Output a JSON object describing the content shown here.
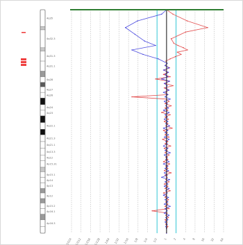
{
  "chart_data": {
    "type": "line",
    "orientation": "vertical-profile",
    "xscale": "log2",
    "x_ticks": [
      "1/1024",
      "1/512",
      "1/256",
      "1/128",
      "1/64",
      "1/32",
      "1/16",
      "1/8",
      "1/4",
      "1/2",
      "1",
      "2",
      "4",
      "8",
      "16",
      "32",
      "64"
    ],
    "x_axis_label": "",
    "grid": true,
    "highlight_lines": [
      0.5,
      2
    ],
    "center_line": 1,
    "colors": {
      "series_1": "#e03c3c",
      "series_2": "#3a3adc",
      "highlight": "#33c7d6",
      "center": "#222222",
      "top_border": "#2e7d32",
      "legend_red": "#ef4040"
    },
    "ideogram": {
      "bands": [
        {
          "label": "4q35",
          "start": 0.0,
          "end": 0.075,
          "stain": "gneg"
        },
        {
          "label": "",
          "start": 0.075,
          "end": 0.09,
          "stain": "gpos25"
        },
        {
          "label": "4q32.3",
          "start": 0.09,
          "end": 0.17,
          "stain": "gneg"
        },
        {
          "label": "",
          "start": 0.17,
          "end": 0.185,
          "stain": "gpos25"
        },
        {
          "label": "4q31.3",
          "start": 0.185,
          "end": 0.23,
          "stain": "gneg"
        },
        {
          "label": "4q31.1",
          "start": 0.23,
          "end": 0.275,
          "stain": "gneg"
        },
        {
          "label": "",
          "start": 0.275,
          "end": 0.3,
          "stain": "gpos50"
        },
        {
          "label": "4q28",
          "start": 0.3,
          "end": 0.325,
          "stain": "gneg"
        },
        {
          "label": "",
          "start": 0.325,
          "end": 0.345,
          "stain": "gpos75"
        },
        {
          "label": "4q27",
          "start": 0.345,
          "end": 0.37,
          "stain": "gneg"
        },
        {
          "label": "4q26",
          "start": 0.37,
          "end": 0.395,
          "stain": "gneg"
        },
        {
          "label": "",
          "start": 0.395,
          "end": 0.425,
          "stain": "gpos100"
        },
        {
          "label": "4q24",
          "start": 0.425,
          "end": 0.45,
          "stain": "gneg"
        },
        {
          "label": "4q23",
          "start": 0.45,
          "end": 0.475,
          "stain": "gneg"
        },
        {
          "label": "",
          "start": 0.475,
          "end": 0.505,
          "stain": "gpos100"
        },
        {
          "label": "4q22.1",
          "start": 0.505,
          "end": 0.535,
          "stain": "gneg"
        },
        {
          "label": "",
          "start": 0.535,
          "end": 0.56,
          "stain": "gpos100"
        },
        {
          "label": "4q21.3",
          "start": 0.56,
          "end": 0.59,
          "stain": "gneg"
        },
        {
          "label": "4q21.1",
          "start": 0.59,
          "end": 0.62,
          "stain": "gneg"
        },
        {
          "label": "4q13.3",
          "start": 0.62,
          "end": 0.65,
          "stain": "gneg"
        },
        {
          "label": "4q12",
          "start": 0.65,
          "end": 0.675,
          "stain": "gneg"
        },
        {
          "label": "4p15.31",
          "start": 0.675,
          "end": 0.705,
          "stain": "gneg"
        },
        {
          "label": "",
          "start": 0.705,
          "end": 0.725,
          "stain": "gpos25"
        },
        {
          "label": "4p15.1",
          "start": 0.725,
          "end": 0.75,
          "stain": "gneg"
        },
        {
          "label": "4p14",
          "start": 0.75,
          "end": 0.775,
          "stain": "gneg"
        },
        {
          "label": "4p13",
          "start": 0.775,
          "end": 0.8,
          "stain": "gneg"
        },
        {
          "label": "",
          "start": 0.8,
          "end": 0.82,
          "stain": "gpos50"
        },
        {
          "label": "4p12",
          "start": 0.82,
          "end": 0.845,
          "stain": "gneg"
        },
        {
          "label": "",
          "start": 0.845,
          "end": 0.865,
          "stain": "gpos50"
        },
        {
          "label": "4p15.2",
          "start": 0.865,
          "end": 0.89,
          "stain": "gneg"
        },
        {
          "label": "4p16.1",
          "start": 0.89,
          "end": 0.915,
          "stain": "gneg"
        },
        {
          "label": "",
          "start": 0.915,
          "end": 0.94,
          "stain": "gpos50"
        },
        {
          "label": "4p16.3",
          "start": 0.94,
          "end": 0.97,
          "stain": "gneg"
        },
        {
          "label": "",
          "start": 0.97,
          "end": 1.0,
          "stain": "gneg"
        }
      ]
    },
    "series": [
      {
        "points": [
          [
            0.0,
            1.0
          ],
          [
            0.02,
            1.6
          ],
          [
            0.05,
            4.5
          ],
          [
            0.08,
            20
          ],
          [
            0.1,
            4
          ],
          [
            0.13,
            1.4
          ],
          [
            0.15,
            1.7
          ],
          [
            0.16,
            2.3
          ],
          [
            0.17,
            3.4
          ],
          [
            0.18,
            4.6
          ],
          [
            0.19,
            2.2
          ],
          [
            0.2,
            2.9
          ],
          [
            0.21,
            1.9
          ],
          [
            0.22,
            1.3
          ],
          [
            0.23,
            0.95
          ],
          [
            0.24,
            1.05
          ],
          [
            0.25,
            0.9
          ],
          [
            0.26,
            1.25
          ],
          [
            0.27,
            0.85
          ],
          [
            0.28,
            1.1
          ],
          [
            0.29,
            0.8
          ],
          [
            0.3,
            1.3
          ],
          [
            0.31,
            0.45
          ],
          [
            0.32,
            1.2
          ],
          [
            0.33,
            0.9
          ],
          [
            0.34,
            1.6
          ],
          [
            0.35,
            0.85
          ],
          [
            0.36,
            1.15
          ],
          [
            0.37,
            0.95
          ],
          [
            0.38,
            1.1
          ],
          [
            0.39,
            0.08
          ],
          [
            0.4,
            1.0
          ],
          [
            0.41,
            1.2
          ],
          [
            0.42,
            0.9
          ],
          [
            0.43,
            1.4
          ],
          [
            0.44,
            0.9
          ],
          [
            0.45,
            1.1
          ],
          [
            0.46,
            0.7
          ],
          [
            0.47,
            1.3
          ],
          [
            0.48,
            0.9
          ],
          [
            0.49,
            1.15
          ],
          [
            0.5,
            0.85
          ],
          [
            0.51,
            1.1
          ],
          [
            0.52,
            0.95
          ],
          [
            0.53,
            1.5
          ],
          [
            0.54,
            0.8
          ],
          [
            0.55,
            1.05
          ],
          [
            0.56,
            0.9
          ],
          [
            0.57,
            1.2
          ],
          [
            0.58,
            0.75
          ],
          [
            0.59,
            1.1
          ],
          [
            0.6,
            0.9
          ],
          [
            0.61,
            1.35
          ],
          [
            0.62,
            0.85
          ],
          [
            0.63,
            1.05
          ],
          [
            0.64,
            0.9
          ],
          [
            0.65,
            1.2
          ],
          [
            0.66,
            0.95
          ],
          [
            0.67,
            1.1
          ],
          [
            0.68,
            0.8
          ],
          [
            0.69,
            1.25
          ],
          [
            0.7,
            0.95
          ],
          [
            0.71,
            1.1
          ],
          [
            0.72,
            0.85
          ],
          [
            0.73,
            1.4
          ],
          [
            0.74,
            0.9
          ],
          [
            0.75,
            1.05
          ],
          [
            0.76,
            0.95
          ],
          [
            0.77,
            1.2
          ],
          [
            0.78,
            0.85
          ],
          [
            0.79,
            1.1
          ],
          [
            0.8,
            0.9
          ],
          [
            0.81,
            1.3
          ],
          [
            0.82,
            0.8
          ],
          [
            0.83,
            1.0
          ],
          [
            0.84,
            0.9
          ],
          [
            0.85,
            1.15
          ],
          [
            0.86,
            0.95
          ],
          [
            0.87,
            1.1
          ],
          [
            0.88,
            0.9
          ],
          [
            0.89,
            1.2
          ],
          [
            0.9,
            0.35
          ],
          [
            0.91,
            1.05
          ],
          [
            0.92,
            0.95
          ],
          [
            0.93,
            1.15
          ],
          [
            0.94,
            0.9
          ],
          [
            0.95,
            1.05
          ],
          [
            0.96,
            0.95
          ],
          [
            0.97,
            1.1
          ],
          [
            0.98,
            1.0
          ],
          [
            1.0,
            1.0
          ]
        ]
      },
      {
        "points": [
          [
            0.0,
            1.0
          ],
          [
            0.02,
            0.7
          ],
          [
            0.05,
            0.12
          ],
          [
            0.08,
            0.05
          ],
          [
            0.11,
            0.1
          ],
          [
            0.14,
            0.2
          ],
          [
            0.16,
            0.45
          ],
          [
            0.18,
            0.08
          ],
          [
            0.2,
            0.18
          ],
          [
            0.22,
            0.55
          ],
          [
            0.24,
            1.05
          ],
          [
            0.25,
            0.9
          ],
          [
            0.26,
            1.2
          ],
          [
            0.27,
            0.8
          ],
          [
            0.28,
            1.15
          ],
          [
            0.29,
            0.9
          ],
          [
            0.3,
            1.1
          ],
          [
            0.31,
            0.7
          ],
          [
            0.32,
            1.25
          ],
          [
            0.33,
            0.85
          ],
          [
            0.34,
            1.05
          ],
          [
            0.35,
            0.95
          ],
          [
            0.36,
            1.2
          ],
          [
            0.37,
            0.8
          ],
          [
            0.38,
            1.1
          ],
          [
            0.39,
            0.9
          ],
          [
            0.4,
            1.3
          ],
          [
            0.41,
            0.85
          ],
          [
            0.42,
            1.05
          ],
          [
            0.43,
            0.95
          ],
          [
            0.44,
            1.15
          ],
          [
            0.45,
            0.8
          ],
          [
            0.46,
            1.2
          ],
          [
            0.47,
            0.9
          ],
          [
            0.48,
            1.05
          ],
          [
            0.49,
            0.85
          ],
          [
            0.5,
            1.1
          ],
          [
            0.51,
            0.95
          ],
          [
            0.52,
            1.25
          ],
          [
            0.53,
            0.8
          ],
          [
            0.54,
            1.1
          ],
          [
            0.55,
            0.9
          ],
          [
            0.56,
            1.15
          ],
          [
            0.57,
            0.85
          ],
          [
            0.58,
            1.2
          ],
          [
            0.59,
            0.95
          ],
          [
            0.6,
            1.05
          ],
          [
            0.61,
            0.8
          ],
          [
            0.62,
            1.1
          ],
          [
            0.63,
            0.9
          ],
          [
            0.64,
            1.3
          ],
          [
            0.65,
            0.85
          ],
          [
            0.66,
            1.05
          ],
          [
            0.67,
            0.95
          ],
          [
            0.68,
            1.2
          ],
          [
            0.69,
            0.8
          ],
          [
            0.7,
            1.1
          ],
          [
            0.71,
            0.9
          ],
          [
            0.72,
            1.15
          ],
          [
            0.73,
            0.85
          ],
          [
            0.74,
            1.05
          ],
          [
            0.75,
            0.7
          ],
          [
            0.76,
            1.25
          ],
          [
            0.77,
            0.9
          ],
          [
            0.78,
            1.1
          ],
          [
            0.79,
            0.85
          ],
          [
            0.8,
            1.2
          ],
          [
            0.81,
            0.95
          ],
          [
            0.82,
            1.05
          ],
          [
            0.83,
            0.8
          ],
          [
            0.84,
            1.15
          ],
          [
            0.85,
            0.9
          ],
          [
            0.86,
            1.1
          ],
          [
            0.87,
            0.85
          ],
          [
            0.88,
            1.3
          ],
          [
            0.89,
            0.9
          ],
          [
            0.9,
            1.05
          ],
          [
            0.91,
            0.85
          ],
          [
            0.92,
            1.2
          ],
          [
            0.93,
            0.95
          ],
          [
            0.94,
            1.1
          ],
          [
            0.95,
            0.9
          ],
          [
            0.96,
            1.05
          ],
          [
            0.97,
            0.95
          ],
          [
            0.98,
            1.0
          ],
          [
            1.0,
            1.0
          ]
        ]
      }
    ]
  }
}
